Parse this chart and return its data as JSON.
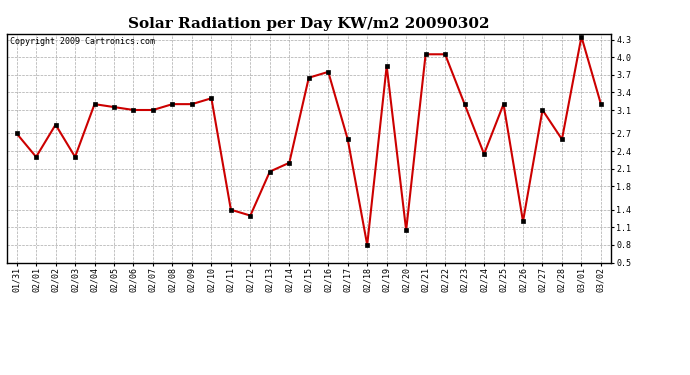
{
  "title": "Solar Radiation per Day KW/m2 20090302",
  "copyright": "Copyright 2009 Cartronics.com",
  "labels": [
    "01/31",
    "02/01",
    "02/02",
    "02/03",
    "02/04",
    "02/05",
    "02/06",
    "02/07",
    "02/08",
    "02/09",
    "02/10",
    "02/11",
    "02/12",
    "02/13",
    "02/14",
    "02/15",
    "02/16",
    "02/17",
    "02/18",
    "02/19",
    "02/20",
    "02/21",
    "02/22",
    "02/23",
    "02/24",
    "02/25",
    "02/26",
    "02/27",
    "02/28",
    "03/01",
    "03/02"
  ],
  "values": [
    2.7,
    2.3,
    2.85,
    2.3,
    3.2,
    3.15,
    3.1,
    3.1,
    3.2,
    3.2,
    3.3,
    1.4,
    1.3,
    2.05,
    2.2,
    3.65,
    3.75,
    2.6,
    0.8,
    3.85,
    1.05,
    4.05,
    4.05,
    3.2,
    2.35,
    3.2,
    1.2,
    3.1,
    2.6,
    4.35,
    3.2
  ],
  "line_color": "#cc0000",
  "marker": "s",
  "marker_size": 2.5,
  "background_color": "#ffffff",
  "grid_color": "#aaaaaa",
  "ylim": [
    0.5,
    4.4
  ],
  "yticks": [
    0.5,
    0.8,
    1.1,
    1.4,
    1.8,
    2.1,
    2.4,
    2.7,
    3.1,
    3.4,
    3.7,
    4.0,
    4.3
  ],
  "title_fontsize": 11,
  "copyright_fontsize": 6,
  "tick_fontsize": 6,
  "line_width": 1.5
}
